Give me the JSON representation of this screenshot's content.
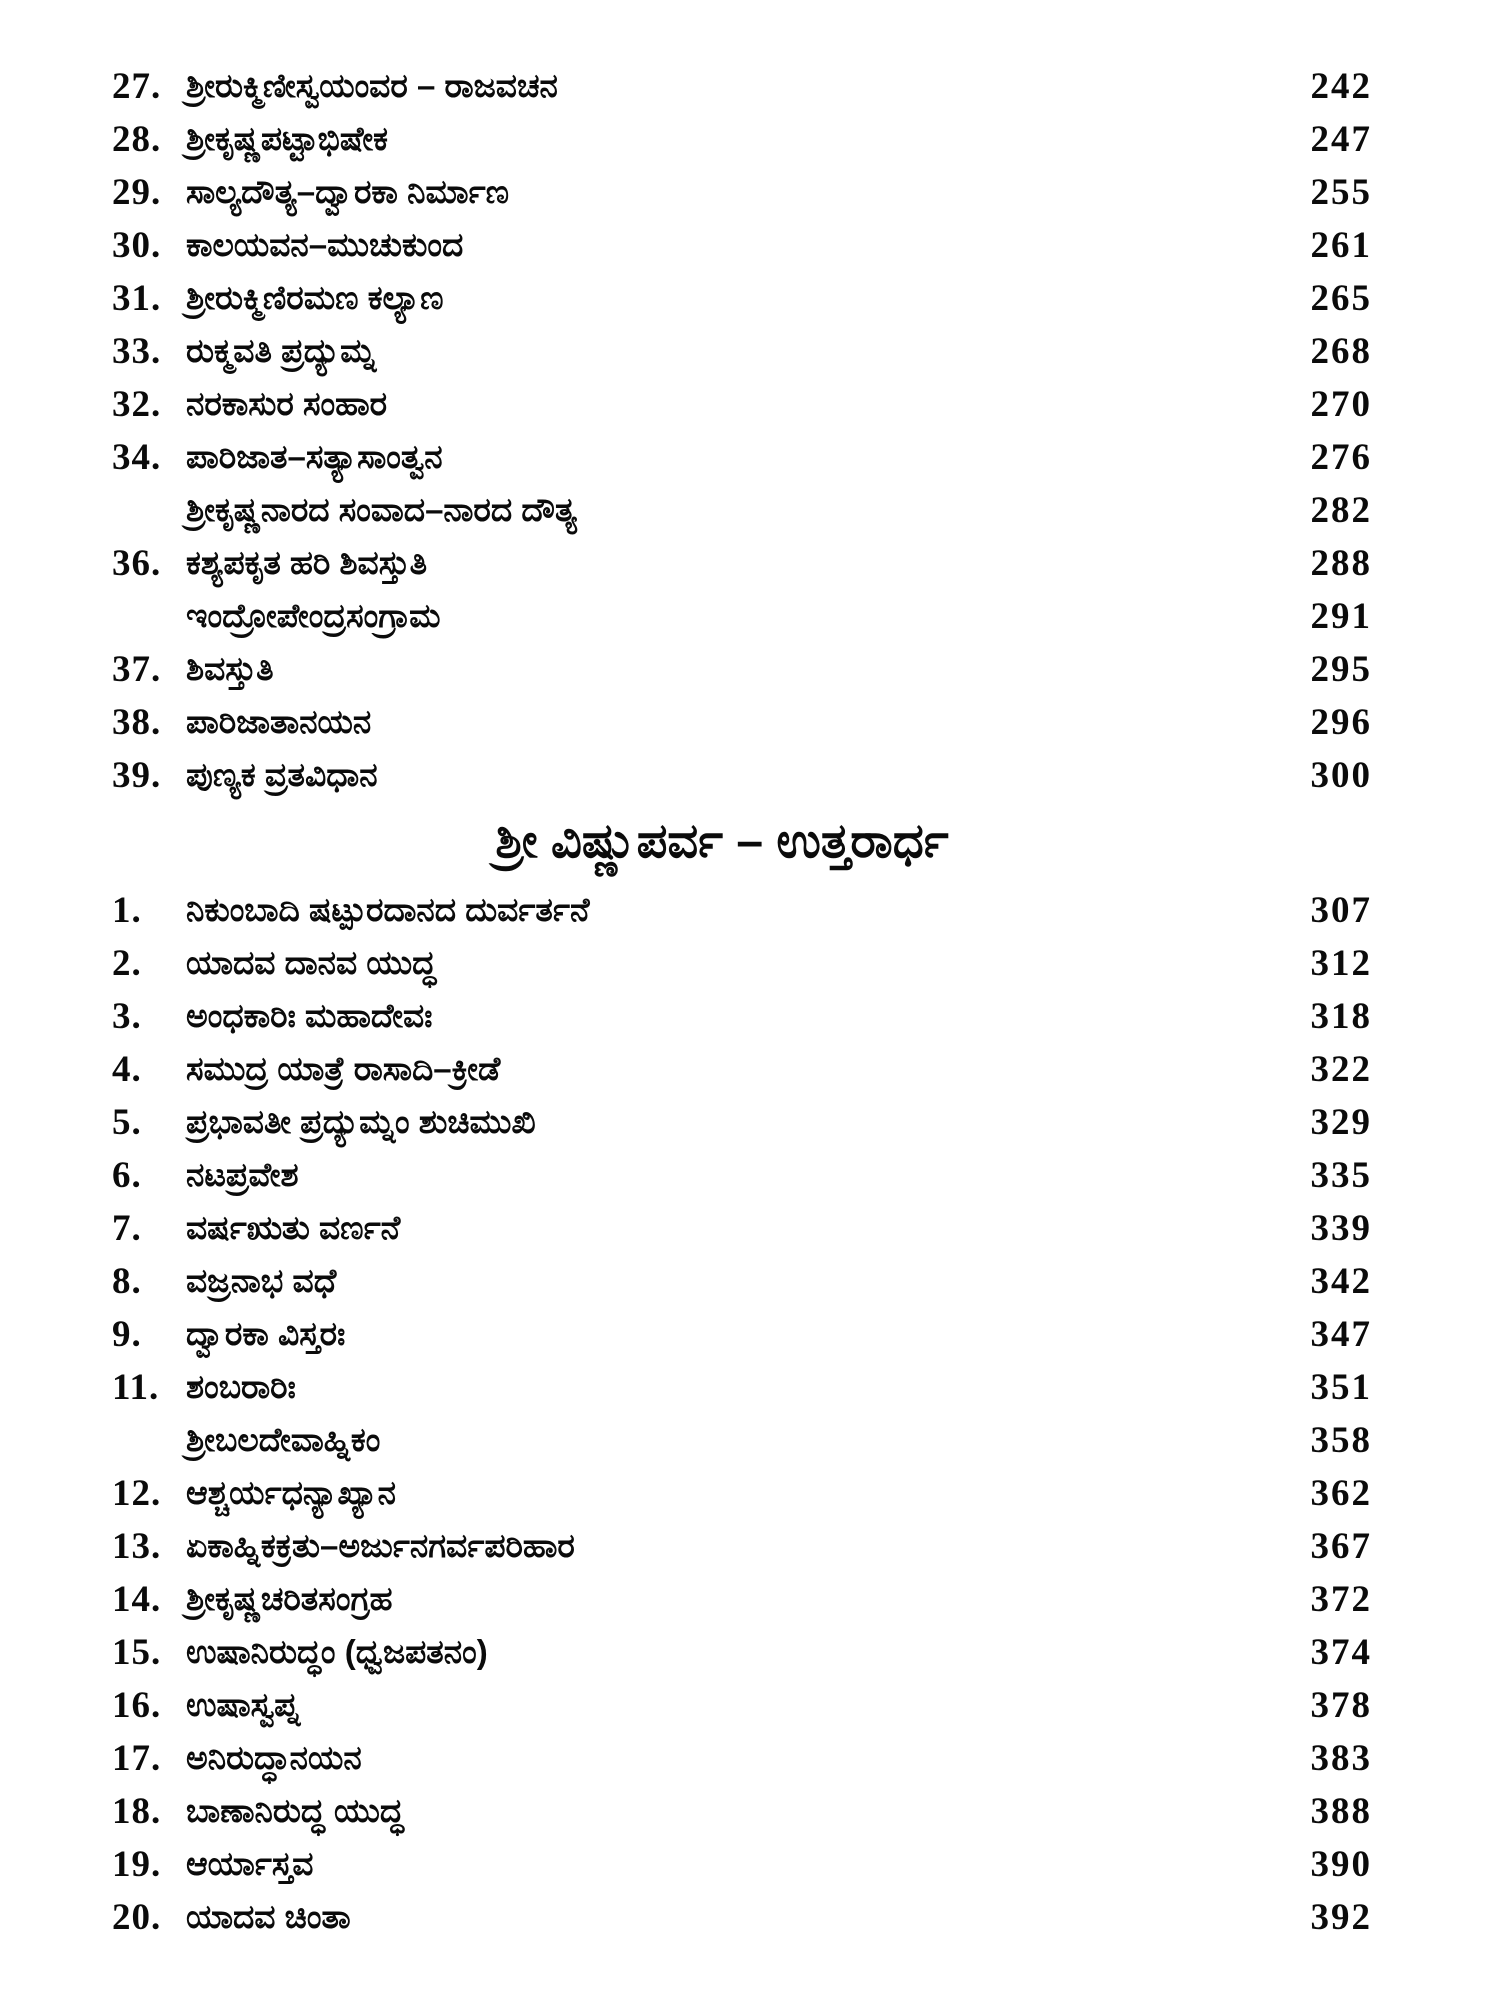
{
  "toc": {
    "section1": {
      "entries": [
        {
          "num": "27.",
          "title": "ಶ್ರೀರುಕ್ಮಿಣೀಸ್ವಯಂವರ – ರಾಜವಚನ",
          "page": "242"
        },
        {
          "num": "28.",
          "title": "ಶ್ರೀಕೃಷ್ಣಪಟ್ಟಾಭಿಷೇಕ",
          "page": "247"
        },
        {
          "num": "29.",
          "title": "ಸಾಲ್ಯದೌತ್ಯ–ದ್ವಾರಕಾ ನಿರ್ಮಾಣ",
          "page": "255"
        },
        {
          "num": "30.",
          "title": "ಕಾಲಯವನ–ಮುಚುಕುಂದ",
          "page": "261"
        },
        {
          "num": "31.",
          "title": "ಶ್ರೀರುಕ್ಮಿಣಿರಮಣ ಕಲ್ಯಾಣ",
          "page": "265"
        },
        {
          "num": "33.",
          "title": "ರುಕ್ಮವತಿ ಪ್ರದ್ಯುಮ್ನ",
          "page": "268"
        },
        {
          "num": "32.",
          "title": "ನರಕಾಸುರ ಸಂಹಾರ",
          "page": "270"
        },
        {
          "num": "34.",
          "title": "ಪಾರಿಜಾತ–ಸತ್ಯಾಸಾಂತ್ವನ",
          "page": "276"
        },
        {
          "num": "",
          "title": "ಶ್ರೀಕೃಷ್ಣನಾರದ ಸಂವಾದ–ನಾರದ ದೌತ್ಯ",
          "page": "282"
        },
        {
          "num": "36.",
          "title": "ಕಶ್ಯಪಕೃತ ಹರಿ ಶಿವಸ್ತುತಿ",
          "page": "288"
        },
        {
          "num": "",
          "title": "ಇಂದ್ರೋಪೇಂದ್ರಸಂಗ್ರಾಮ",
          "page": "291"
        },
        {
          "num": "37.",
          "title": "ಶಿವಸ್ತುತಿ",
          "page": "295"
        },
        {
          "num": "38.",
          "title": "ಪಾರಿಜಾತಾನಯನ",
          "page": "296"
        },
        {
          "num": "39.",
          "title": "ಪುಣ್ಯಕ ವ್ರತವಿಧಾನ",
          "page": "300"
        }
      ]
    },
    "section2": {
      "header": "ಶ್ರೀ ವಿಷ್ಣುಪರ್ವ – ಉತ್ತರಾರ್ಧ",
      "entries": [
        {
          "num": "1.",
          "title": "ನಿಕುಂಬಾದಿ ಷಟ್ಪುರದಾನದ ದುರ್ವರ್ತನೆ",
          "page": "307"
        },
        {
          "num": "2.",
          "title": "ಯಾದವ ದಾನವ ಯುದ್ಧ",
          "page": "312"
        },
        {
          "num": "3.",
          "title": "ಅಂಧಕಾರಿಃ ಮಹಾದೇವಃ",
          "page": "318"
        },
        {
          "num": "4.",
          "title": "ಸಮುದ್ರ ಯಾತ್ರೆ ರಾಸಾದಿ–ಕ್ರೀಡೆ",
          "page": "322"
        },
        {
          "num": "5.",
          "title": "ಪ್ರಭಾವತೀ ಪ್ರದ್ಯುಮ್ನಂ ಶುಚಿಮುಖಿ",
          "page": "329"
        },
        {
          "num": "6.",
          "title": "ನಟಪ್ರವೇಶ",
          "page": "335"
        },
        {
          "num": "7.",
          "title": "ವರ್ಷಋತು ವರ್ಣನೆ",
          "page": "339"
        },
        {
          "num": "8.",
          "title": "ವಜ್ರನಾಭ ವಧೆ",
          "page": "342"
        },
        {
          "num": "9.",
          "title": "ದ್ವಾರಕಾ ವಿಸ್ತರಃ",
          "page": "347"
        },
        {
          "num": "11.",
          "title": "ಶಂಬರಾರಿಃ",
          "page": "351"
        },
        {
          "num": "",
          "title": "ಶ್ರೀಬಲದೇವಾಹ್ನಿಕಂ",
          "page": "358"
        },
        {
          "num": "12.",
          "title": "ಆಶ್ಚರ್ಯಧನ್ಯಾಖ್ಯಾನ",
          "page": "362"
        },
        {
          "num": "13.",
          "title": "ಏಕಾಹ್ನಿಕಕ್ರತು–ಅರ್ಜುನಗರ್ವಪರಿಹಾರ",
          "page": "367"
        },
        {
          "num": "14.",
          "title": "ಶ್ರೀಕೃಷ್ಣಚರಿತಸಂಗ್ರಹ",
          "page": "372"
        },
        {
          "num": "15.",
          "title": "ಉಷಾನಿರುದ್ಧಂ (ಧ್ವಜಪತನಂ)",
          "page": "374"
        },
        {
          "num": "16.",
          "title": "ಉಷಾಸ್ವಪ್ನ",
          "page": "378"
        },
        {
          "num": "17.",
          "title": "ಅನಿರುದ್ಧಾನಯನ",
          "page": "383"
        },
        {
          "num": "18.",
          "title": "ಬಾಣಾನಿರುದ್ಧ ಯುದ್ಧ",
          "page": "388"
        },
        {
          "num": "19.",
          "title": "ಆರ್ಯಾಸ್ತವ",
          "page": "390"
        },
        {
          "num": "20.",
          "title": "ಯಾದವ ಚಿಂತಾ",
          "page": "392"
        }
      ]
    }
  }
}
